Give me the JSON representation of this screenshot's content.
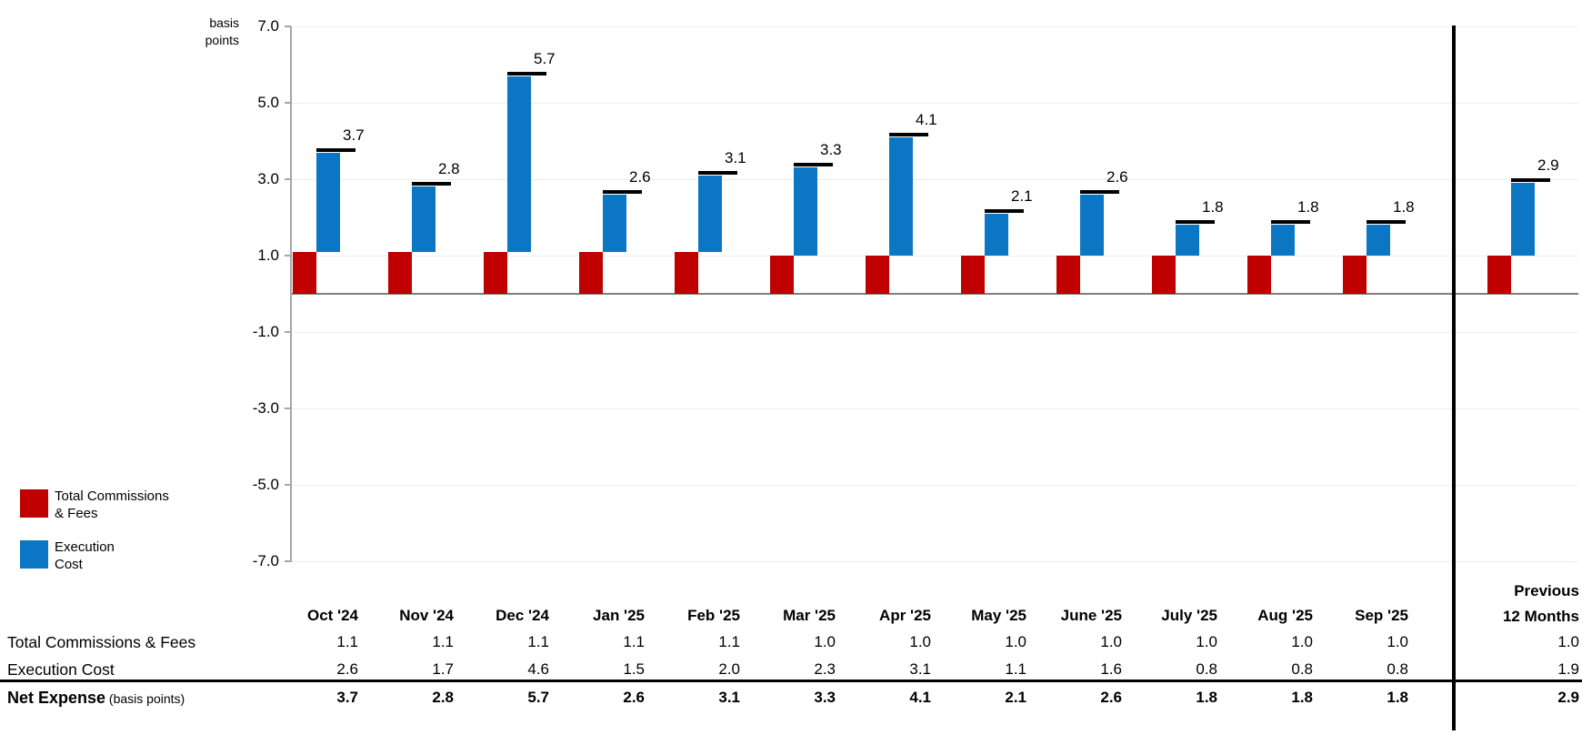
{
  "unit_label": {
    "line1": "basis",
    "line2": "points"
  },
  "colors": {
    "commissions": "#c00000",
    "execution": "#0b76c4",
    "gridline": "#e9eef5",
    "zero_line": "#7f7f7f",
    "axis": "#a6a6a6",
    "marker": "#000000",
    "separator": "#000000"
  },
  "y_axis": {
    "ticks": [
      7.0,
      5.0,
      3.0,
      1.0,
      -1.0,
      -3.0,
      -5.0,
      -7.0
    ],
    "min": -7.0,
    "max": 7.0
  },
  "legend": {
    "items": [
      {
        "key": "commissions",
        "line1": "Total Commissions",
        "line2": "& Fees"
      },
      {
        "key": "execution",
        "line1": "Execution",
        "line2": "Cost"
      }
    ]
  },
  "chart_data": {
    "type": "bar",
    "subtype": "stacked-waterfall-with-total-markers",
    "title": "",
    "xlabel": "",
    "ylabel": "basis points",
    "ylim": [
      -7.0,
      7.0
    ],
    "gridlines": [
      7.0,
      5.0,
      3.0,
      1.0,
      -1.0,
      -3.0,
      -5.0,
      -7.0
    ],
    "legend_position": "bottom-left",
    "categories": [
      "Oct '24",
      "Nov '24",
      "Dec '24",
      "Jan '25",
      "Feb '25",
      "Mar '25",
      "Apr '25",
      "May '25",
      "June '25",
      "July '25",
      "Aug '25",
      "Sep '25",
      "Previous 12 Months"
    ],
    "series": [
      {
        "name": "Total Commissions & Fees",
        "color": "#c00000",
        "values": [
          1.1,
          1.1,
          1.1,
          1.1,
          1.1,
          1.0,
          1.0,
          1.0,
          1.0,
          1.0,
          1.0,
          1.0,
          1.0
        ]
      },
      {
        "name": "Execution Cost",
        "color": "#0b76c4",
        "values": [
          2.6,
          1.7,
          4.6,
          1.5,
          2.0,
          2.3,
          3.1,
          1.1,
          1.6,
          0.8,
          0.8,
          0.8,
          1.9
        ]
      }
    ],
    "totals": {
      "name": "Net Expense (basis points)",
      "values": [
        3.7,
        2.8,
        5.7,
        2.6,
        3.1,
        3.3,
        4.1,
        2.1,
        2.6,
        1.8,
        1.8,
        1.8,
        2.9
      ]
    },
    "data_labels": [
      "3.7",
      "2.8",
      "5.7",
      "2.6",
      "3.1",
      "3.3",
      "4.1",
      "2.1",
      "2.6",
      "1.8",
      "1.8",
      "1.8",
      "2.9"
    ]
  },
  "table": {
    "month_headers": [
      "Oct '24",
      "Nov '24",
      "Dec '24",
      "Jan '25",
      "Feb '25",
      "Mar '25",
      "Apr '25",
      "May '25",
      "June '25",
      "July '25",
      "Aug '25",
      "Sep '25"
    ],
    "last_header": {
      "line1": "Previous",
      "line2": "12 Months"
    },
    "rows": [
      {
        "label": "Total Commissions & Fees",
        "suffix": "",
        "bold": false,
        "values": [
          "1.1",
          "1.1",
          "1.1",
          "1.1",
          "1.1",
          "1.0",
          "1.0",
          "1.0",
          "1.0",
          "1.0",
          "1.0",
          "1.0"
        ],
        "last_value": "1.0"
      },
      {
        "label": "Execution Cost",
        "suffix": "",
        "bold": false,
        "values": [
          "2.6",
          "1.7",
          "4.6",
          "1.5",
          "2.0",
          "2.3",
          "3.1",
          "1.1",
          "1.6",
          "0.8",
          "0.8",
          "0.8"
        ],
        "last_value": "1.9"
      },
      {
        "label": "Net Expense",
        "suffix": " (basis points)",
        "bold": true,
        "values": [
          "3.7",
          "2.8",
          "5.7",
          "2.6",
          "3.1",
          "3.3",
          "4.1",
          "2.1",
          "2.6",
          "1.8",
          "1.8",
          "1.8"
        ],
        "last_value": "2.9"
      }
    ]
  }
}
